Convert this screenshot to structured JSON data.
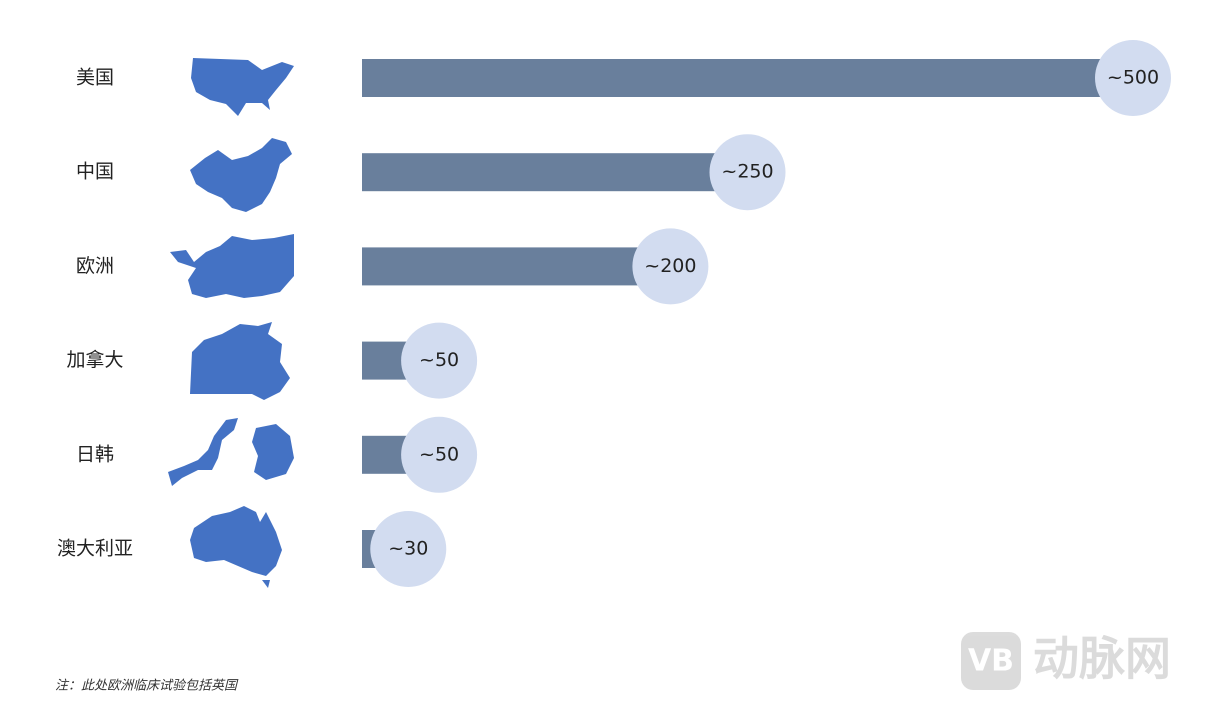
{
  "chart_data": {
    "type": "bar",
    "categories": [
      "美国",
      "中国",
      "欧洲",
      "加拿大",
      "日韩",
      "澳大利亚"
    ],
    "values": [
      500,
      250,
      200,
      50,
      50,
      30
    ],
    "value_labels": [
      "~500",
      "~250",
      "~200",
      "~50",
      "~50",
      "~30"
    ],
    "color": "#697f9c",
    "label_bubble_color": "#d2dcf0",
    "note": "注：此处欧洲临床试验包括英国"
  },
  "watermark": {
    "logo": "VB",
    "text": "动脉网"
  }
}
